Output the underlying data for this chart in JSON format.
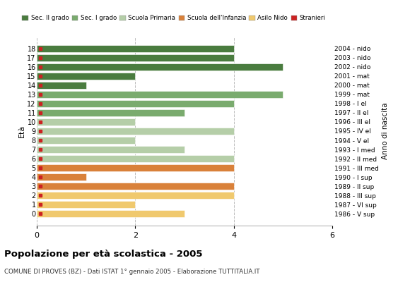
{
  "ages": [
    18,
    17,
    16,
    15,
    14,
    13,
    12,
    11,
    10,
    9,
    8,
    7,
    6,
    5,
    4,
    3,
    2,
    1,
    0
  ],
  "years": [
    "1986 - V sup",
    "1987 - VI sup",
    "1988 - III sup",
    "1989 - II sup",
    "1990 - I sup",
    "1991 - III med",
    "1992 - II med",
    "1993 - I med",
    "1994 - V el",
    "1995 - IV el",
    "1996 - III el",
    "1997 - II el",
    "1998 - I el",
    "1999 - mat",
    "2000 - mat",
    "2001 - mat",
    "2002 - nido",
    "2003 - nido",
    "2004 - nido"
  ],
  "values": [
    4,
    4,
    5,
    2,
    1,
    5,
    4,
    3,
    2,
    4,
    2,
    3,
    4,
    4,
    1,
    4,
    4,
    2,
    3
  ],
  "categories": [
    "Sec. II grado",
    "Sec. I grado",
    "Scuola Primaria",
    "Scuola dell'Infanzia",
    "Asilo Nido"
  ],
  "bar_colors": [
    "#4a7c3f",
    "#7aab6e",
    "#b5cea8",
    "#d9813a",
    "#f0c96e"
  ],
  "foreigner_color": "#cc2222",
  "age_to_category": {
    "18": 0,
    "17": 0,
    "16": 0,
    "15": 0,
    "14": 0,
    "13": 1,
    "12": 1,
    "11": 1,
    "10": 2,
    "9": 2,
    "8": 2,
    "7": 2,
    "6": 2,
    "5": 3,
    "4": 3,
    "3": 3,
    "2": 4,
    "1": 4,
    "0": 4
  },
  "xlim": [
    0,
    6
  ],
  "xticks": [
    0,
    2,
    4,
    6
  ],
  "title": "Popolazione per età scolastica - 2005",
  "subtitle": "COMUNE DI PROVES (BZ) - Dati ISTAT 1° gennaio 2005 - Elaborazione TUTTITALIA.IT",
  "ylabel": "Età",
  "right_label": "Anno di nascita",
  "background_color": "#ffffff",
  "grid_color": "#bbbbbb"
}
